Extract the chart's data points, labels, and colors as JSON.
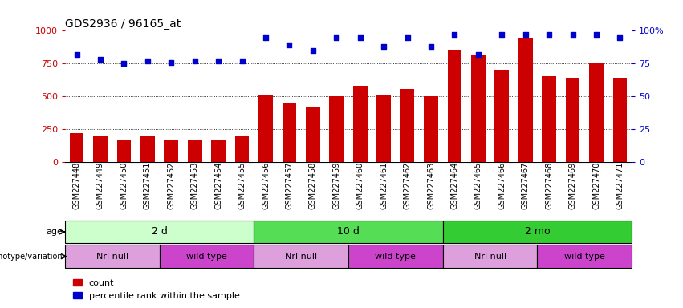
{
  "title": "GDS2936 / 96165_at",
  "samples": [
    "GSM227448",
    "GSM227449",
    "GSM227450",
    "GSM227451",
    "GSM227452",
    "GSM227453",
    "GSM227454",
    "GSM227455",
    "GSM227456",
    "GSM227457",
    "GSM227458",
    "GSM227459",
    "GSM227460",
    "GSM227461",
    "GSM227462",
    "GSM227463",
    "GSM227464",
    "GSM227465",
    "GSM227466",
    "GSM227467",
    "GSM227468",
    "GSM227469",
    "GSM227470",
    "GSM227471"
  ],
  "counts": [
    220,
    195,
    170,
    195,
    165,
    168,
    168,
    195,
    505,
    450,
    415,
    500,
    580,
    515,
    555,
    500,
    855,
    820,
    700,
    950,
    655,
    640,
    755,
    640
  ],
  "percentile": [
    82,
    78,
    75,
    77,
    76,
    77,
    77,
    77,
    95,
    89,
    85,
    95,
    95,
    88,
    95,
    88,
    97,
    82,
    97,
    97,
    97,
    97,
    97,
    95
  ],
  "bar_color": "#cc0000",
  "dot_color": "#0000cc",
  "ylim_left": [
    0,
    1000
  ],
  "ylim_right": [
    0,
    100
  ],
  "yticks_left": [
    0,
    250,
    500,
    750,
    1000
  ],
  "yticks_right": [
    0,
    25,
    50,
    75,
    100
  ],
  "grid_values": [
    250,
    500,
    750
  ],
  "age_groups": [
    {
      "label": "2 d",
      "start": 0,
      "end": 8,
      "color": "#ccffcc"
    },
    {
      "label": "10 d",
      "start": 8,
      "end": 16,
      "color": "#55dd55"
    },
    {
      "label": "2 mo",
      "start": 16,
      "end": 24,
      "color": "#33cc33"
    }
  ],
  "genotype_groups": [
    {
      "label": "Nrl null",
      "start": 0,
      "end": 4,
      "color": "#dda0dd"
    },
    {
      "label": "wild type",
      "start": 4,
      "end": 8,
      "color": "#cc44cc"
    },
    {
      "label": "Nrl null",
      "start": 8,
      "end": 12,
      "color": "#dda0dd"
    },
    {
      "label": "wild type",
      "start": 12,
      "end": 16,
      "color": "#cc44cc"
    },
    {
      "label": "Nrl null",
      "start": 16,
      "end": 20,
      "color": "#dda0dd"
    },
    {
      "label": "wild type",
      "start": 20,
      "end": 24,
      "color": "#cc44cc"
    }
  ],
  "legend_count_color": "#cc0000",
  "legend_dot_color": "#0000cc",
  "ylabel_left_color": "#cc0000",
  "ylabel_right_color": "#0000cc",
  "background_color": "#ffffff",
  "bar_width": 0.6
}
